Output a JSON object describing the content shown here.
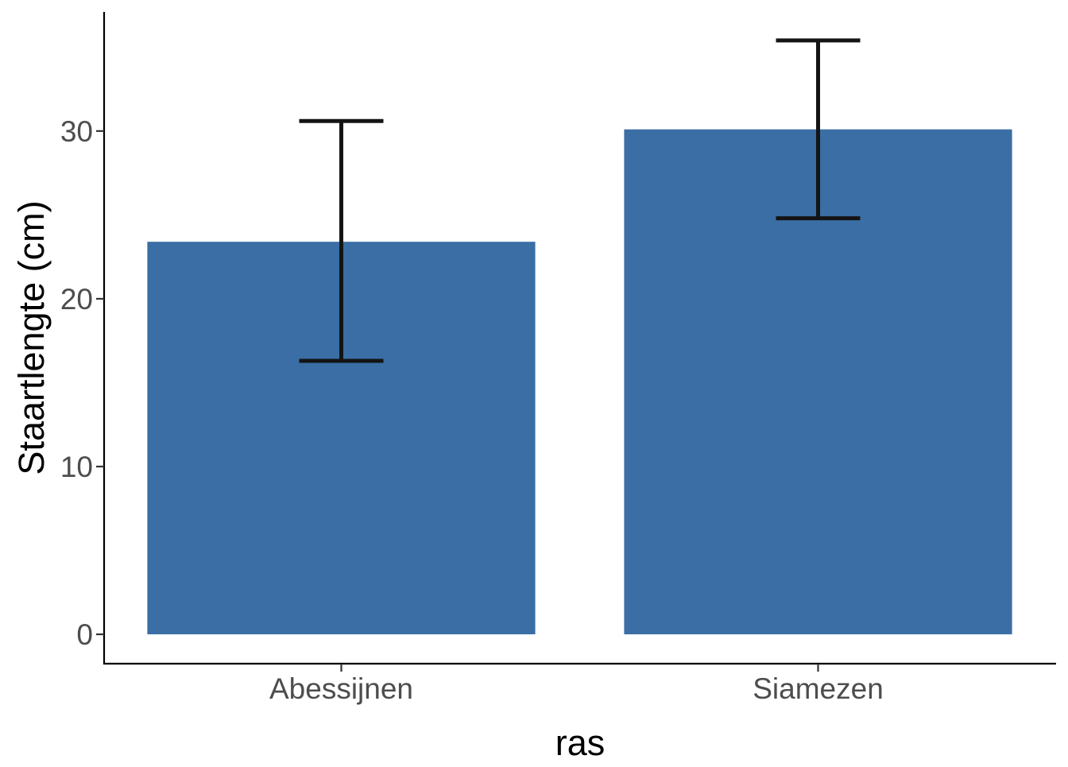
{
  "chart_data": {
    "type": "bar",
    "title": "",
    "xlabel": "ras",
    "ylabel": "Staartlengte (cm)",
    "categories": [
      "Abessijnen",
      "Siamezen"
    ],
    "values": [
      23.4,
      30.1
    ],
    "error_bars": [
      {
        "lower": 16.3,
        "upper": 30.6
      },
      {
        "lower": 24.8,
        "upper": 35.4
      }
    ],
    "yticks": [
      0,
      10,
      20,
      30
    ],
    "ytick_labels": [
      "0",
      "10",
      "20",
      "30"
    ],
    "ylim": [
      -1.75,
      37.1
    ],
    "grid": false,
    "legend": "none",
    "colors": {
      "bar": "#3A6EA5",
      "error_bar": "#141414",
      "axis": "#000000",
      "tick_text": "#4D4D4D"
    }
  }
}
